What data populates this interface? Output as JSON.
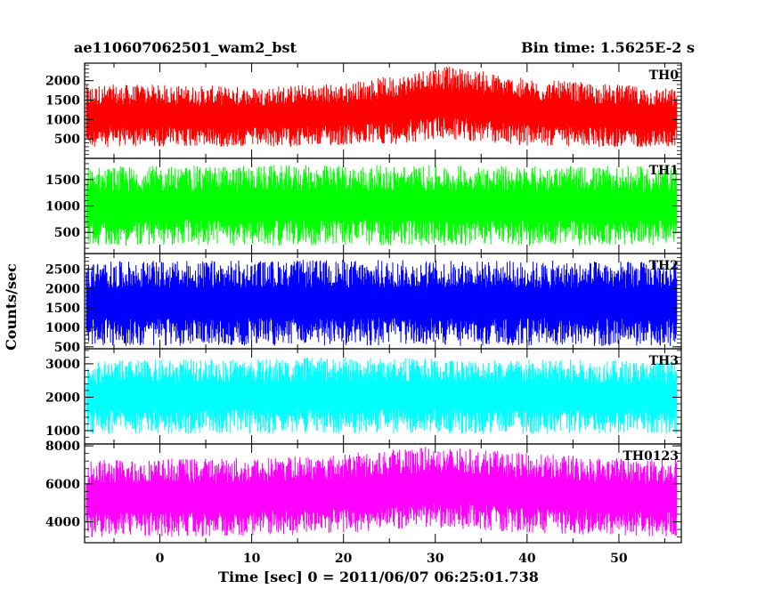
{
  "header": {
    "title": "ae110607062501_wam2_bst",
    "bin_time": "Bin time: 1.5625E-2 s"
  },
  "axes": {
    "ylabel": "Counts/sec",
    "xlabel": "Time [sec] 0 = 2011/06/07 06:25:01.738"
  },
  "chart_data": {
    "type": "line",
    "x_range": [
      -8.2,
      56.8
    ],
    "x_ticks": [
      0,
      10,
      20,
      30,
      40,
      50
    ],
    "x_tick_labels": [
      "0",
      "10",
      "20",
      "30",
      "40",
      "50"
    ],
    "panels": [
      {
        "name": "TH0",
        "color": "#ff0000",
        "ylim": [
          0,
          2450
        ],
        "y_ticks": [
          500,
          1000,
          1500,
          2000
        ],
        "y_tick_labels": [
          "500",
          "1000",
          "1500",
          "2000"
        ],
        "profile": [
          {
            "x": -8,
            "low": 280,
            "high": 1900
          },
          {
            "x": 0,
            "low": 300,
            "high": 1900
          },
          {
            "x": 10,
            "low": 280,
            "high": 1850
          },
          {
            "x": 20,
            "low": 320,
            "high": 1950
          },
          {
            "x": 26,
            "low": 380,
            "high": 2150
          },
          {
            "x": 30,
            "low": 480,
            "high": 2400
          },
          {
            "x": 34,
            "low": 420,
            "high": 2300
          },
          {
            "x": 40,
            "low": 320,
            "high": 2050
          },
          {
            "x": 50,
            "low": 280,
            "high": 1900
          },
          {
            "x": 56,
            "low": 300,
            "high": 1800
          }
        ]
      },
      {
        "name": "TH1",
        "color": "#00ff00",
        "ylim": [
          100,
          1900
        ],
        "y_ticks": [
          500,
          1000,
          1500
        ],
        "y_tick_labels": [
          "500",
          "1000",
          "1500"
        ],
        "profile": [
          {
            "x": -8,
            "low": 250,
            "high": 1750
          },
          {
            "x": 20,
            "low": 250,
            "high": 1780
          },
          {
            "x": 40,
            "low": 250,
            "high": 1760
          },
          {
            "x": 56,
            "low": 250,
            "high": 1750
          }
        ]
      },
      {
        "name": "TH2",
        "color": "#0000ff",
        "ylim": [
          450,
          2900
        ],
        "y_ticks": [
          500,
          1000,
          1500,
          2000,
          2500
        ],
        "y_tick_labels": [
          "500",
          "1000",
          "1500",
          "2000",
          "2500"
        ],
        "profile": [
          {
            "x": -8,
            "low": 520,
            "high": 2700
          },
          {
            "x": 20,
            "low": 520,
            "high": 2750
          },
          {
            "x": 40,
            "low": 520,
            "high": 2720
          },
          {
            "x": 56,
            "low": 520,
            "high": 2700
          }
        ]
      },
      {
        "name": "TH3",
        "color": "#00ffff",
        "ylim": [
          600,
          3450
        ],
        "y_ticks": [
          1000,
          2000,
          3000
        ],
        "y_tick_labels": [
          "1000",
          "2000",
          "3000"
        ],
        "profile": [
          {
            "x": -8,
            "low": 900,
            "high": 3100
          },
          {
            "x": 20,
            "low": 900,
            "high": 3200
          },
          {
            "x": 40,
            "low": 900,
            "high": 3150
          },
          {
            "x": 56,
            "low": 900,
            "high": 3100
          }
        ]
      },
      {
        "name": "TH0123",
        "color": "#ff00ff",
        "ylim": [
          2900,
          8100
        ],
        "y_ticks": [
          4000,
          6000,
          8000
        ],
        "y_tick_labels": [
          "4000",
          "6000",
          "8000"
        ],
        "profile": [
          {
            "x": -8,
            "low": 3200,
            "high": 7300
          },
          {
            "x": 10,
            "low": 3200,
            "high": 7400
          },
          {
            "x": 20,
            "low": 3400,
            "high": 7600
          },
          {
            "x": 30,
            "low": 3700,
            "high": 8000
          },
          {
            "x": 40,
            "low": 3400,
            "high": 7600
          },
          {
            "x": 56,
            "low": 3200,
            "high": 7300
          }
        ]
      }
    ]
  }
}
